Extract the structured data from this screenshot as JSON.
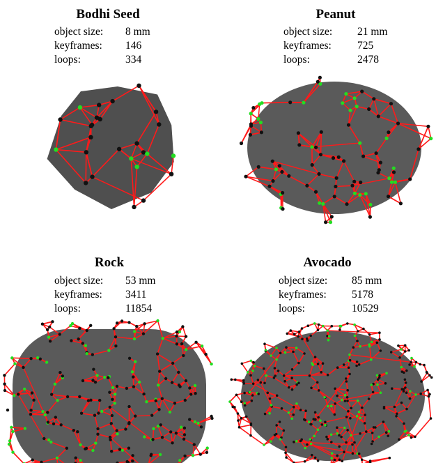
{
  "panels": [
    {
      "title": "Bodhi Seed",
      "rows": [
        [
          "object size:",
          "8 mm"
        ],
        [
          "keyframes:",
          "146"
        ],
        [
          "loops:",
          "334"
        ]
      ]
    },
    {
      "title": "Peanut",
      "rows": [
        [
          "object size:",
          "21 mm"
        ],
        [
          "keyframes:",
          "725"
        ],
        [
          "loops:",
          "2478"
        ]
      ]
    },
    {
      "title": "Rock",
      "rows": [
        [
          "object size:",
          "53 mm"
        ],
        [
          "keyframes:",
          "3411"
        ],
        [
          "loops:",
          "11854"
        ]
      ]
    },
    {
      "title": "Avocado",
      "rows": [
        [
          "object size:",
          "85 mm"
        ],
        [
          "keyframes:",
          "5178"
        ],
        [
          "loops:",
          "10529"
        ]
      ]
    }
  ]
}
